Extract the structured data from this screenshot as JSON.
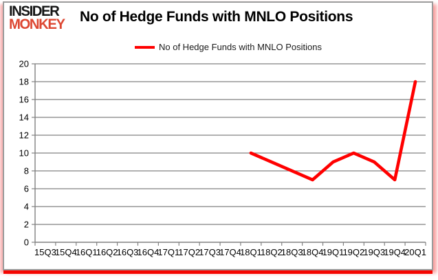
{
  "brand": {
    "line1": "INSIDER",
    "line2": "MONKEY",
    "line1_color": "#151515",
    "line2_color": "#dd4732"
  },
  "header": {
    "title": "No of Hedge Funds with MNLO Positions"
  },
  "legend": {
    "label": "No of Hedge Funds with MNLO Positions",
    "swatch_color": "#ff0000"
  },
  "chart_data": {
    "type": "line",
    "title": "No of Hedge Funds with MNLO Positions",
    "xlabel": "",
    "ylabel": "",
    "categories": [
      "15Q3",
      "15Q4",
      "16Q1",
      "16Q2",
      "16Q3",
      "16Q4",
      "17Q1",
      "17Q2",
      "17Q3",
      "17Q4",
      "18Q1",
      "18Q2",
      "18Q3",
      "18Q4",
      "19Q1",
      "19Q2",
      "19Q3",
      "19Q4",
      "20Q1"
    ],
    "series": [
      {
        "name": "No of Hedge Funds with MNLO Positions",
        "color": "#ff0000",
        "values": [
          null,
          null,
          null,
          null,
          null,
          null,
          null,
          null,
          null,
          null,
          10,
          9,
          8,
          7,
          9,
          10,
          9,
          7,
          18
        ]
      }
    ],
    "ylim": [
      0,
      20
    ],
    "ytick_step": 2,
    "grid": true,
    "legend_position": "top-center",
    "axis_color": "#808080"
  }
}
